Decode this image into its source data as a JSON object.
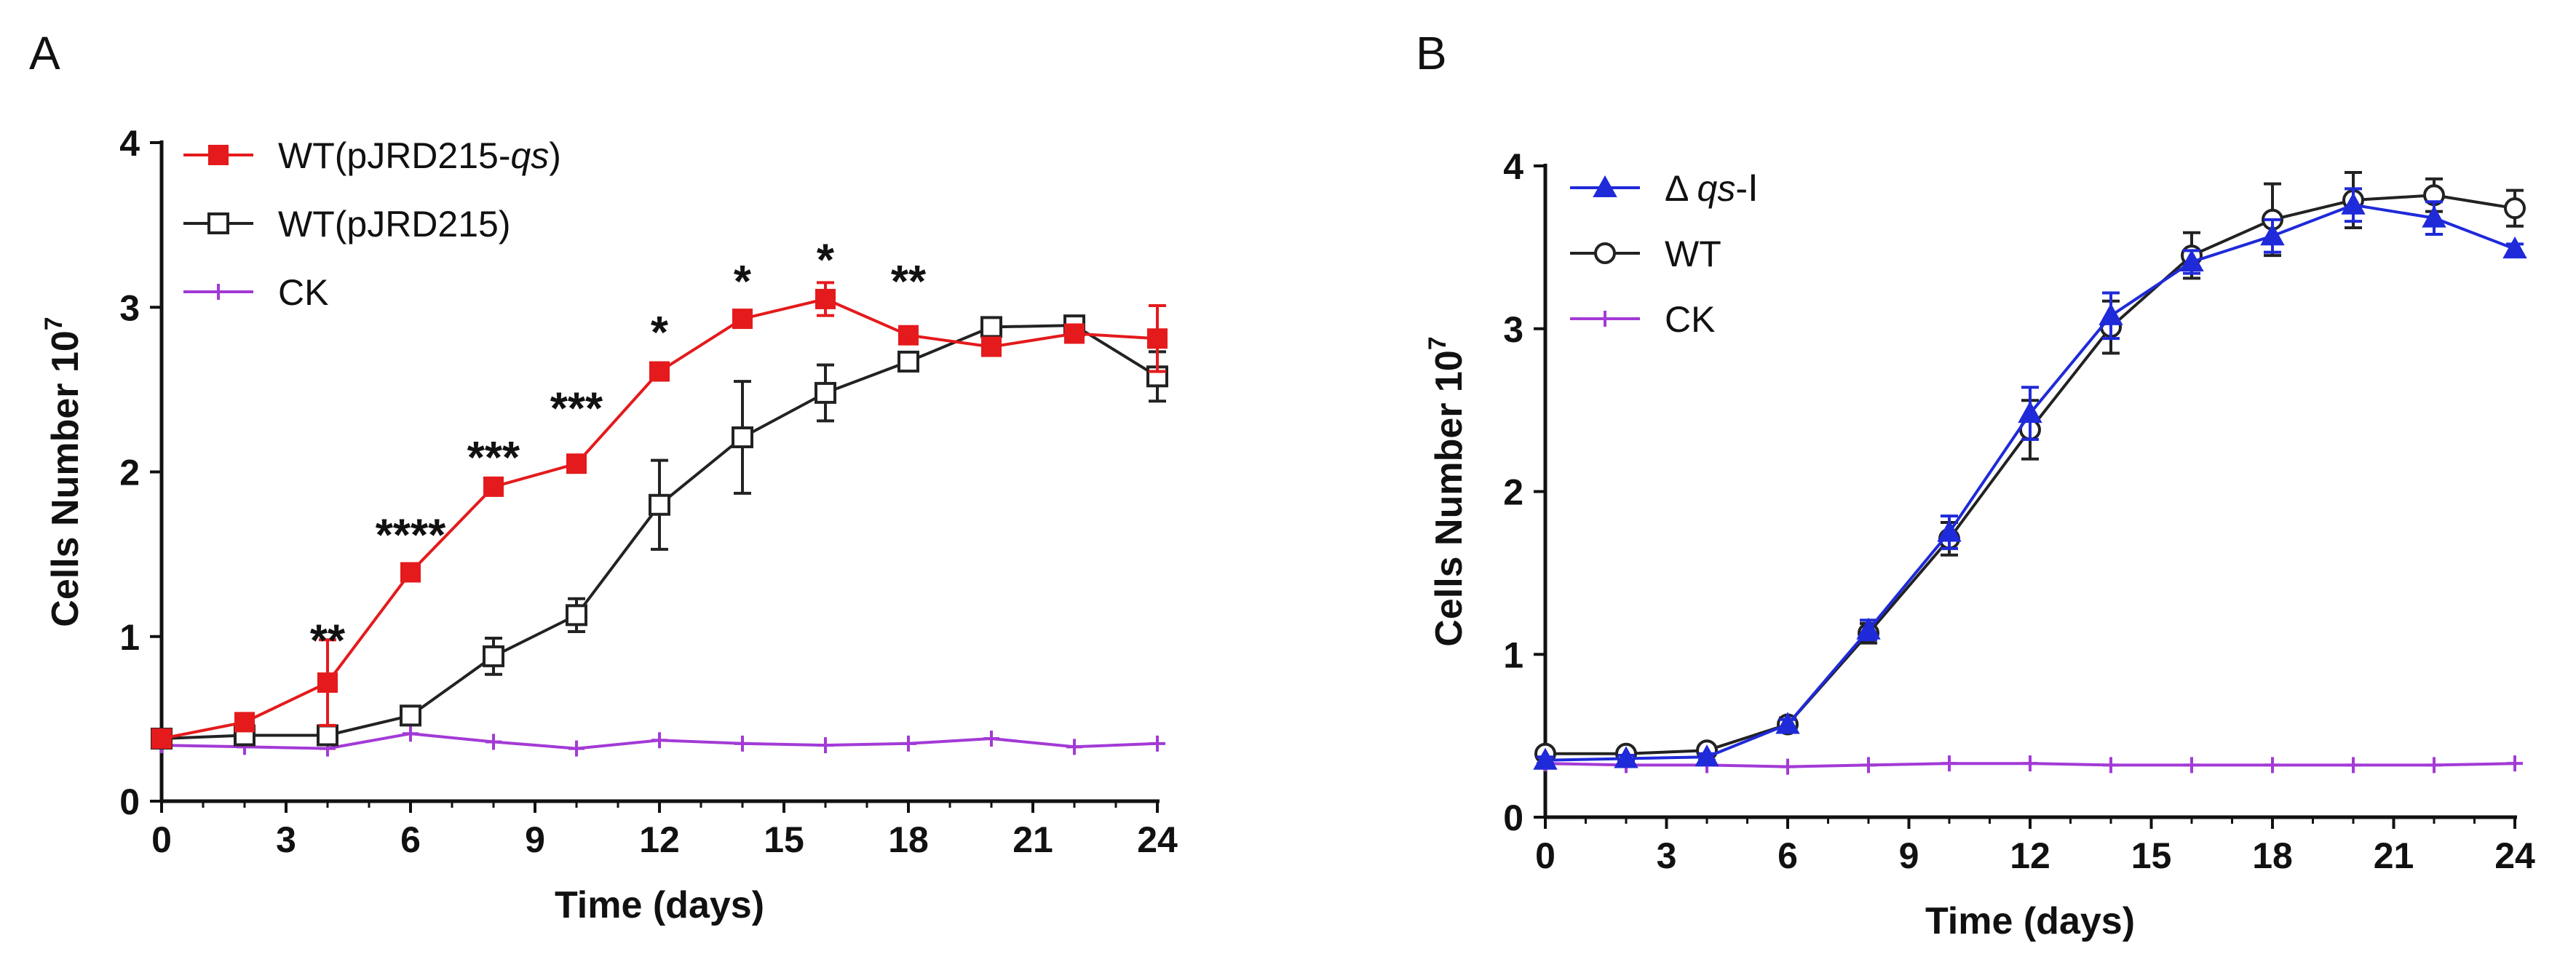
{
  "panels": [
    {
      "id": "A",
      "label": "A"
    },
    {
      "id": "B",
      "label": "B"
    }
  ],
  "colors": {
    "red": "#e41a1c",
    "black": "#222222",
    "purple": "#a33ad6",
    "blue": "#1f2ad9",
    "axis": "#111111"
  },
  "chart_data": [
    {
      "type": "line",
      "panel": "A",
      "title": "",
      "xlabel": "Time (days)",
      "ylabel": "Cells Number 10",
      "ylabel_superscript": "7",
      "xlim": [
        0,
        24
      ],
      "ylim": [
        0,
        4
      ],
      "xticks": [
        "0",
        "3",
        "6",
        "9",
        "12",
        "15",
        "18",
        "21",
        "24"
      ],
      "yticks": [
        "0",
        "1",
        "2",
        "3",
        "4"
      ],
      "legend_position": "top-left",
      "series": [
        {
          "name": "WT(pJRD215-qs)",
          "legend_parts": [
            {
              "text": "WT(pJRD215-",
              "italic": false
            },
            {
              "text": "qs",
              "italic": true
            },
            {
              "text": ")",
              "italic": false
            }
          ],
          "color": "#e41a1c",
          "marker": "filled-square",
          "x": [
            0,
            2,
            4,
            6,
            8,
            10,
            12,
            14,
            16,
            18,
            20,
            22,
            24
          ],
          "values": [
            0.38,
            0.48,
            0.72,
            1.39,
            1.91,
            2.05,
            2.61,
            2.93,
            3.05,
            2.83,
            2.76,
            2.84,
            2.81
          ],
          "errors": [
            0.02,
            0.03,
            0.26,
            0.03,
            0.04,
            0.03,
            0.04,
            0.04,
            0.1,
            0.04,
            0.03,
            0.05,
            0.2
          ]
        },
        {
          "name": "WT(pJRD215)",
          "legend_parts": [
            {
              "text": "WT(pJRD215)",
              "italic": false
            }
          ],
          "color": "#222222",
          "marker": "open-square",
          "x": [
            0,
            2,
            4,
            6,
            8,
            10,
            12,
            14,
            16,
            18,
            20,
            22,
            24
          ],
          "values": [
            0.38,
            0.4,
            0.4,
            0.52,
            0.88,
            1.13,
            1.8,
            2.21,
            2.48,
            2.67,
            2.88,
            2.89,
            2.58
          ],
          "errors": [
            0.02,
            0.03,
            0.04,
            0.04,
            0.11,
            0.1,
            0.27,
            0.34,
            0.17,
            0.04,
            0.04,
            0.04,
            0.15
          ]
        },
        {
          "name": "CK",
          "legend_parts": [
            {
              "text": "CK",
              "italic": false
            }
          ],
          "color": "#a33ad6",
          "marker": "plus",
          "x": [
            0,
            2,
            4,
            6,
            8,
            10,
            12,
            14,
            16,
            18,
            20,
            22,
            24
          ],
          "values": [
            0.34,
            0.33,
            0.32,
            0.41,
            0.36,
            0.32,
            0.37,
            0.35,
            0.34,
            0.35,
            0.38,
            0.33,
            0.35
          ],
          "errors": [
            0,
            0,
            0,
            0,
            0,
            0,
            0,
            0,
            0,
            0,
            0,
            0,
            0
          ]
        }
      ],
      "annotations": [
        {
          "x": 4,
          "y": 0.98,
          "text": "**"
        },
        {
          "x": 6,
          "y": 1.62,
          "text": "****"
        },
        {
          "x": 8,
          "y": 2.09,
          "text": "***"
        },
        {
          "x": 10,
          "y": 2.39,
          "text": "***"
        },
        {
          "x": 12,
          "y": 2.85,
          "text": "*"
        },
        {
          "x": 14,
          "y": 3.16,
          "text": "*"
        },
        {
          "x": 16,
          "y": 3.29,
          "text": "*"
        },
        {
          "x": 18,
          "y": 3.16,
          "text": "**"
        }
      ]
    },
    {
      "type": "line",
      "panel": "B",
      "title": "",
      "xlabel": "Time (days)",
      "ylabel": "Cells Number 10",
      "ylabel_superscript": "7",
      "xlim": [
        0,
        24
      ],
      "ylim": [
        0,
        4
      ],
      "xticks": [
        "0",
        "3",
        "6",
        "9",
        "12",
        "15",
        "18",
        "21",
        "24"
      ],
      "yticks": [
        "0",
        "1",
        "2",
        "3",
        "4"
      ],
      "legend_position": "top-left",
      "series": [
        {
          "name": "Δ qs-Ⅰ",
          "legend_parts": [
            {
              "text": "Δ ",
              "italic": false
            },
            {
              "text": "qs",
              "italic": true
            },
            {
              "text": "-Ⅰ",
              "italic": false
            }
          ],
          "color": "#1f2ad9",
          "marker": "filled-triangle",
          "x": [
            0,
            2,
            4,
            6,
            8,
            10,
            12,
            14,
            16,
            18,
            20,
            22,
            24
          ],
          "values": [
            0.35,
            0.36,
            0.37,
            0.57,
            1.15,
            1.75,
            2.48,
            3.08,
            3.41,
            3.57,
            3.76,
            3.68,
            3.49
          ],
          "errors": [
            0.02,
            0.02,
            0.02,
            0.03,
            0.06,
            0.1,
            0.16,
            0.14,
            0.07,
            0.1,
            0.1,
            0.1,
            0.03
          ]
        },
        {
          "name": "WT",
          "legend_parts": [
            {
              "text": "WT",
              "italic": false
            }
          ],
          "color": "#222222",
          "marker": "open-circle",
          "x": [
            0,
            2,
            4,
            6,
            8,
            10,
            12,
            14,
            16,
            18,
            20,
            22,
            24
          ],
          "values": [
            0.39,
            0.39,
            0.41,
            0.57,
            1.13,
            1.71,
            2.38,
            3.01,
            3.45,
            3.67,
            3.79,
            3.82,
            3.74
          ],
          "errors": [
            0.02,
            0.02,
            0.02,
            0.04,
            0.06,
            0.1,
            0.18,
            0.16,
            0.14,
            0.22,
            0.17,
            0.1,
            0.11
          ]
        },
        {
          "name": "CK",
          "legend_parts": [
            {
              "text": "CK",
              "italic": false
            }
          ],
          "color": "#a33ad6",
          "marker": "plus",
          "x": [
            0,
            2,
            4,
            6,
            8,
            10,
            12,
            14,
            16,
            18,
            20,
            22,
            24
          ],
          "values": [
            0.33,
            0.32,
            0.32,
            0.31,
            0.32,
            0.33,
            0.33,
            0.32,
            0.32,
            0.32,
            0.32,
            0.32,
            0.33
          ],
          "errors": [
            0,
            0,
            0,
            0,
            0,
            0,
            0,
            0,
            0,
            0,
            0,
            0,
            0
          ]
        }
      ],
      "annotations": []
    }
  ]
}
